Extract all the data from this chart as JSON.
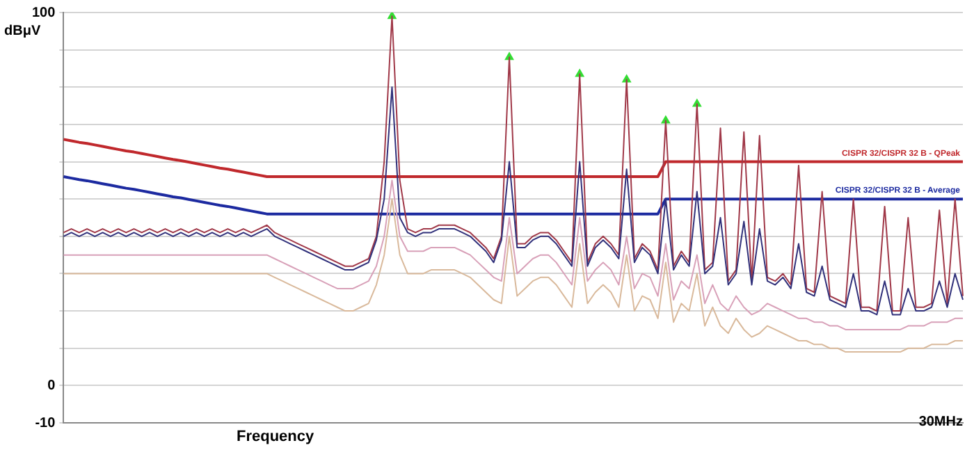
{
  "chart_data": {
    "type": "line",
    "xlabel": "Frequency",
    "ylabel": "dBμV",
    "grid": "y",
    "legend": false,
    "marker": "none",
    "tick_labels": "y",
    "annotations": [
      "30MHz"
    ],
    "ylim": [
      -10,
      100
    ],
    "yticks": [
      -10,
      0,
      {
        "value": 10,
        "label": null
      },
      {
        "value": 20,
        "label": null
      },
      {
        "value": 30,
        "label": null
      },
      {
        "value": 40,
        "label": null
      },
      {
        "value": 50,
        "label": null
      },
      {
        "value": 60,
        "label": null
      },
      {
        "value": 70,
        "label": null
      },
      {
        "value": 80,
        "label": null
      },
      {
        "value": 90,
        "label": null
      },
      100
    ],
    "categories": [
      null,
      null,
      null,
      null,
      null,
      null,
      null,
      null,
      null,
      null,
      null,
      null,
      null,
      null,
      null,
      null,
      null,
      null,
      null,
      null,
      null,
      null,
      null,
      null,
      null,
      null,
      null,
      null,
      null,
      null,
      null,
      null,
      null,
      null,
      null,
      null,
      null,
      null,
      null,
      null,
      null,
      null,
      null,
      null,
      null,
      null,
      null,
      null,
      null,
      null,
      null,
      null,
      null,
      null,
      null,
      null,
      null,
      null,
      null,
      null,
      null,
      null,
      null,
      null,
      null,
      null,
      null,
      null,
      null,
      null,
      null,
      null,
      null,
      null,
      null,
      null,
      null,
      null,
      null,
      null,
      null,
      null,
      null,
      null,
      null,
      null,
      null,
      null,
      null,
      null,
      null,
      null,
      null,
      null,
      null,
      null,
      null,
      null,
      null,
      null,
      null,
      null,
      null,
      null,
      null,
      null,
      null,
      null,
      null,
      null,
      null,
      null,
      null,
      null,
      null,
      null
    ],
    "series": [
      {
        "color": "#d9b99b",
        "values": [
          30,
          30,
          30,
          30,
          30,
          30,
          30,
          30,
          30,
          30,
          30,
          30,
          30,
          30,
          30,
          30,
          30,
          30,
          30,
          30,
          30,
          30,
          30,
          30,
          30,
          30,
          30,
          29,
          28,
          27,
          26,
          25,
          24,
          23,
          22,
          21,
          20,
          20,
          21,
          22,
          27,
          35,
          50,
          35,
          30,
          30,
          30,
          31,
          31,
          31,
          31,
          30,
          29,
          27,
          25,
          23,
          22,
          40,
          24,
          26,
          28,
          29,
          29,
          27,
          24,
          21,
          38,
          22,
          25,
          27,
          25,
          21,
          35,
          20,
          24,
          23,
          18,
          33,
          17,
          22,
          20,
          30,
          16,
          21,
          16,
          14,
          18,
          15,
          13,
          14,
          16,
          15,
          14,
          13,
          12,
          12,
          11,
          11,
          10,
          10,
          9,
          9,
          9,
          9,
          9,
          9,
          9,
          9,
          10,
          10,
          10,
          11,
          11,
          11,
          12,
          12
        ]
      },
      {
        "color": "#d8a0b8",
        "values": [
          35,
          35,
          35,
          35,
          35,
          35,
          35,
          35,
          35,
          35,
          35,
          35,
          35,
          35,
          35,
          35,
          35,
          35,
          35,
          35,
          35,
          35,
          35,
          35,
          35,
          35,
          35,
          34,
          33,
          32,
          31,
          30,
          29,
          28,
          27,
          26,
          26,
          26,
          27,
          28,
          32,
          40,
          55,
          40,
          36,
          36,
          36,
          37,
          37,
          37,
          37,
          36,
          35,
          33,
          31,
          29,
          28,
          45,
          30,
          32,
          34,
          35,
          35,
          33,
          30,
          27,
          45,
          28,
          31,
          33,
          31,
          27,
          40,
          26,
          30,
          29,
          24,
          38,
          23,
          28,
          26,
          35,
          22,
          27,
          22,
          20,
          24,
          21,
          19,
          20,
          22,
          21,
          20,
          19,
          18,
          18,
          17,
          17,
          16,
          16,
          15,
          15,
          15,
          15,
          15,
          15,
          15,
          15,
          16,
          16,
          16,
          17,
          17,
          17,
          18,
          18
        ]
      },
      {
        "color": "#30307a",
        "values": [
          40,
          41,
          40,
          41,
          40,
          41,
          40,
          41,
          40,
          41,
          40,
          41,
          40,
          41,
          40,
          41,
          40,
          41,
          40,
          41,
          40,
          41,
          40,
          41,
          40,
          41,
          42,
          40,
          39,
          38,
          37,
          36,
          35,
          34,
          33,
          32,
          31,
          31,
          32,
          33,
          39,
          50,
          80,
          45,
          41,
          40,
          41,
          41,
          42,
          42,
          42,
          41,
          40,
          38,
          36,
          33,
          39,
          60,
          37,
          37,
          39,
          40,
          40,
          38,
          35,
          32,
          60,
          32,
          37,
          39,
          37,
          34,
          58,
          33,
          37,
          35,
          30,
          50,
          31,
          35,
          32,
          52,
          30,
          32,
          45,
          27,
          30,
          44,
          27,
          42,
          28,
          27,
          29,
          26,
          38,
          25,
          24,
          32,
          23,
          22,
          21,
          30,
          20,
          20,
          19,
          28,
          19,
          19,
          26,
          20,
          20,
          21,
          28,
          21,
          30,
          23
        ]
      },
      {
        "color": "#a03848",
        "values": [
          41,
          42,
          41,
          42,
          41,
          42,
          41,
          42,
          41,
          42,
          41,
          42,
          41,
          42,
          41,
          42,
          41,
          42,
          41,
          42,
          41,
          42,
          41,
          42,
          41,
          42,
          43,
          41,
          40,
          39,
          38,
          37,
          36,
          35,
          34,
          33,
          32,
          32,
          33,
          34,
          40,
          60,
          99,
          55,
          42,
          41,
          42,
          42,
          43,
          43,
          43,
          42,
          41,
          39,
          37,
          34,
          40,
          88,
          38,
          38,
          40,
          41,
          41,
          39,
          36,
          33,
          83.5,
          33,
          38,
          40,
          38,
          35,
          82,
          34,
          38,
          36,
          31,
          71,
          32,
          36,
          33,
          75.5,
          31,
          33,
          69,
          28,
          31,
          68,
          28,
          67,
          29,
          28,
          30,
          27,
          59,
          26,
          25,
          52,
          24,
          23,
          22,
          50,
          21,
          21,
          20,
          48,
          20,
          20,
          45,
          21,
          21,
          22,
          47,
          22,
          50,
          24
        ]
      },
      {
        "name": "CISPR 32/CISPR 32 B - QPeak",
        "color": "#c0282c",
        "values": [
          66,
          65.6,
          65.2,
          64.9,
          64.5,
          64.1,
          63.7,
          63.3,
          62.9,
          62.6,
          62.2,
          61.8,
          61.4,
          61,
          60.6,
          60.3,
          59.9,
          59.5,
          59.1,
          58.7,
          58.3,
          58,
          57.6,
          57.2,
          56.8,
          56.4,
          56,
          56,
          56,
          56,
          56,
          56,
          56,
          56,
          56,
          56,
          56,
          56,
          56,
          56,
          56,
          56,
          56,
          56,
          56,
          56,
          56,
          56,
          56,
          56,
          56,
          56,
          56,
          56,
          56,
          56,
          56,
          56,
          56,
          56,
          56,
          56,
          56,
          56,
          56,
          56,
          56,
          56,
          56,
          56,
          56,
          56,
          56,
          56,
          56,
          56,
          56,
          60,
          60,
          60,
          60,
          60,
          60,
          60,
          60,
          60,
          60,
          60,
          60,
          60,
          60,
          60,
          60,
          60,
          60,
          60,
          60,
          60,
          60,
          60,
          60,
          60,
          60,
          60,
          60,
          60,
          60,
          60,
          60,
          60,
          60,
          60,
          60,
          60,
          60,
          60
        ]
      },
      {
        "name": "CISPR 32/CISPR 32 B - Average",
        "color": "#1c2aa0",
        "values": [
          56,
          55.6,
          55.2,
          54.9,
          54.5,
          54.1,
          53.7,
          53.3,
          52.9,
          52.6,
          52.2,
          51.8,
          51.4,
          51,
          50.6,
          50.3,
          49.9,
          49.5,
          49.1,
          48.7,
          48.3,
          48,
          47.6,
          47.2,
          46.8,
          46.4,
          46,
          46,
          46,
          46,
          46,
          46,
          46,
          46,
          46,
          46,
          46,
          46,
          46,
          46,
          46,
          46,
          46,
          46,
          46,
          46,
          46,
          46,
          46,
          46,
          46,
          46,
          46,
          46,
          46,
          46,
          46,
          46,
          46,
          46,
          46,
          46,
          46,
          46,
          46,
          46,
          46,
          46,
          46,
          46,
          46,
          46,
          46,
          46,
          46,
          46,
          46,
          50,
          50,
          50,
          50,
          50,
          50,
          50,
          50,
          50,
          50,
          50,
          50,
          50,
          50,
          50,
          50,
          50,
          50,
          50,
          50,
          50,
          50,
          50,
          50,
          50,
          50,
          50,
          50,
          50,
          50,
          50,
          50,
          50,
          50,
          50,
          50,
          50,
          50,
          50
        ]
      },
      {
        "type": "scatter",
        "marker": "triangle",
        "color": "#33dd33",
        "values": [
          null,
          null,
          null,
          null,
          null,
          null,
          null,
          null,
          null,
          null,
          null,
          null,
          null,
          null,
          null,
          null,
          null,
          null,
          null,
          null,
          null,
          null,
          null,
          null,
          null,
          null,
          null,
          null,
          null,
          null,
          null,
          null,
          null,
          null,
          null,
          null,
          null,
          null,
          null,
          null,
          null,
          null,
          99,
          null,
          null,
          null,
          null,
          null,
          null,
          null,
          null,
          null,
          null,
          null,
          null,
          null,
          null,
          88,
          null,
          null,
          null,
          null,
          null,
          null,
          null,
          null,
          83.5,
          null,
          null,
          null,
          null,
          null,
          82,
          null,
          null,
          null,
          null,
          71,
          null,
          null,
          null,
          75.5,
          null,
          null,
          null,
          null,
          null,
          null,
          null,
          null,
          null,
          null,
          null,
          null,
          null,
          null,
          null,
          null,
          null,
          null,
          null,
          null,
          null,
          null,
          null,
          null,
          null,
          null,
          null,
          null,
          null,
          null,
          null,
          null,
          null,
          null
        ]
      }
    ]
  }
}
